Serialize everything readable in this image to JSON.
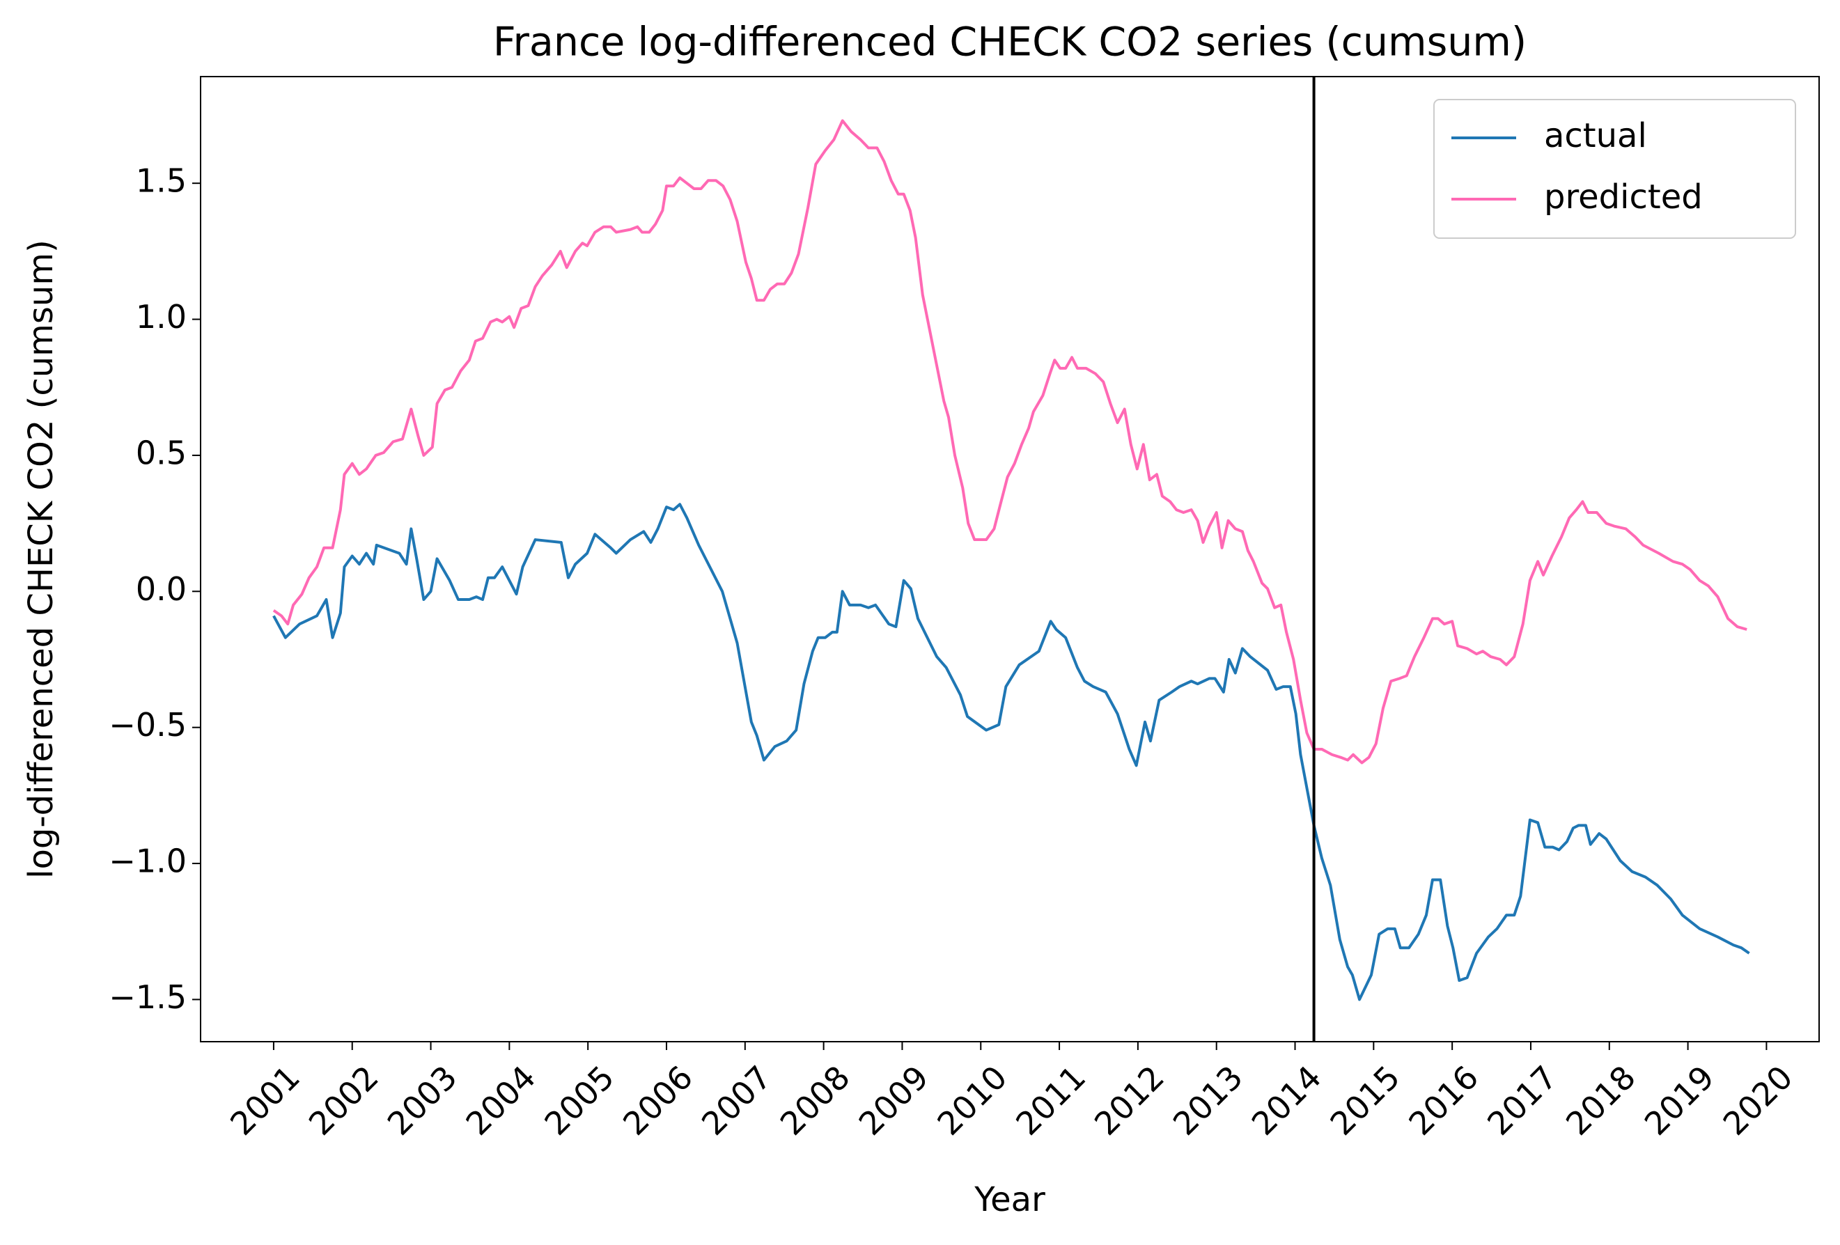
{
  "chart_data": {
    "type": "line",
    "title": "France log-differenced CHECK CO2 series (cumsum)",
    "x_label": "Year",
    "y_label": "log-differenced CHECK CO2 (cumsum)",
    "xlim": [
      2000.07,
      2020.67
    ],
    "ylim": [
      -1.655,
      1.892
    ],
    "xticks": [
      2001,
      2002,
      2003,
      2004,
      2005,
      2006,
      2007,
      2008,
      2009,
      2010,
      2011,
      2012,
      2013,
      2014,
      2015,
      2016,
      2017,
      2018,
      2019,
      2020
    ],
    "yticks": [
      {
        "value": -1.5,
        "label": "−1.5"
      },
      {
        "value": -1.0,
        "label": "−1.0"
      },
      {
        "value": -0.5,
        "label": "−0.5"
      },
      {
        "value": 0,
        "label": "0.0"
      },
      0.5,
      {
        "value": 1.0,
        "label": "1.0"
      },
      1.5
    ],
    "vline_x": 2014.24,
    "vline_color": "#000000",
    "legend": "upper right",
    "series": [
      {
        "name": "actual",
        "color": "#1f77b4",
        "x": [
          2001.0,
          2001.15,
          2001.33,
          2001.55,
          2001.67,
          2001.75,
          2001.85,
          2001.9,
          2002.0,
          2002.09,
          2002.18,
          2002.27,
          2002.31,
          2002.6,
          2002.69,
          2002.75,
          2002.82,
          2002.91,
          2003.0,
          2003.08,
          2003.24,
          2003.35,
          2003.49,
          2003.58,
          2003.66,
          2003.73,
          2003.81,
          2003.91,
          2004.09,
          2004.17,
          2004.33,
          2004.66,
          2004.75,
          2004.84,
          2004.99,
          2005.09,
          2005.29,
          2005.36,
          2005.54,
          2005.71,
          2005.8,
          2005.89,
          2006.0,
          2006.09,
          2006.17,
          2006.26,
          2006.41,
          2006.71,
          2006.81,
          2006.9,
          2007.08,
          2007.15,
          2007.24,
          2007.38,
          2007.53,
          2007.65,
          2007.75,
          2007.86,
          2007.93,
          2008.02,
          2008.11,
          2008.17,
          2008.24,
          2008.33,
          2008.47,
          2008.57,
          2008.66,
          2008.83,
          2008.92,
          2009.02,
          2009.11,
          2009.2,
          2009.44,
          2009.56,
          2009.74,
          2009.83,
          2010.07,
          2010.23,
          2010.32,
          2010.49,
          2010.74,
          2010.89,
          2010.96,
          2011.08,
          2011.23,
          2011.32,
          2011.43,
          2011.59,
          2011.74,
          2011.89,
          2011.98,
          2012.09,
          2012.16,
          2012.27,
          2012.43,
          2012.53,
          2012.68,
          2012.76,
          2012.91,
          2012.98,
          2013.09,
          2013.16,
          2013.24,
          2013.33,
          2013.43,
          2013.65,
          2013.76,
          2013.85,
          2013.94,
          2014.01,
          2014.07,
          2014.24,
          2014.34,
          2014.45,
          2014.57,
          2014.67,
          2014.73,
          2014.82,
          2014.97,
          2015.07,
          2015.18,
          2015.27,
          2015.34,
          2015.45,
          2015.57,
          2015.67,
          2015.75,
          2015.85,
          2015.94,
          2016.01,
          2016.09,
          2016.19,
          2016.31,
          2016.46,
          2016.57,
          2016.69,
          2016.79,
          2016.87,
          2016.99,
          2017.09,
          2017.18,
          2017.28,
          2017.36,
          2017.46,
          2017.54,
          2017.61,
          2017.7,
          2017.76,
          2017.87,
          2017.96,
          2018.14,
          2018.29,
          2018.46,
          2018.61,
          2018.78,
          2018.93,
          2019.15,
          2019.38,
          2019.58,
          2019.68,
          2019.78
        ],
        "values": [
          -0.09,
          -0.17,
          -0.12,
          -0.09,
          -0.03,
          -0.17,
          -0.08,
          0.09,
          0.13,
          0.1,
          0.14,
          0.1,
          0.17,
          0.14,
          0.1,
          0.23,
          0.12,
          -0.03,
          0.0,
          0.12,
          0.04,
          -0.03,
          -0.03,
          -0.02,
          -0.03,
          0.05,
          0.05,
          0.09,
          -0.01,
          0.09,
          0.19,
          0.18,
          0.05,
          0.1,
          0.14,
          0.21,
          0.16,
          0.14,
          0.19,
          0.22,
          0.18,
          0.23,
          0.31,
          0.3,
          0.32,
          0.27,
          0.17,
          0.0,
          -0.1,
          -0.19,
          -0.48,
          -0.53,
          -0.62,
          -0.57,
          -0.55,
          -0.51,
          -0.34,
          -0.22,
          -0.17,
          -0.17,
          -0.15,
          -0.15,
          0.0,
          -0.05,
          -0.05,
          -0.06,
          -0.05,
          -0.12,
          -0.13,
          0.04,
          0.01,
          -0.1,
          -0.24,
          -0.28,
          -0.38,
          -0.46,
          -0.51,
          -0.49,
          -0.35,
          -0.27,
          -0.22,
          -0.11,
          -0.14,
          -0.17,
          -0.28,
          -0.33,
          -0.35,
          -0.37,
          -0.45,
          -0.58,
          -0.64,
          -0.48,
          -0.55,
          -0.4,
          -0.37,
          -0.35,
          -0.33,
          -0.34,
          -0.32,
          -0.32,
          -0.37,
          -0.25,
          -0.3,
          -0.21,
          -0.24,
          -0.29,
          -0.36,
          -0.35,
          -0.35,
          -0.45,
          -0.6,
          -0.86,
          -0.98,
          -1.08,
          -1.28,
          -1.38,
          -1.41,
          -1.5,
          -1.41,
          -1.26,
          -1.24,
          -1.24,
          -1.31,
          -1.31,
          -1.26,
          -1.19,
          -1.06,
          -1.06,
          -1.23,
          -1.31,
          -1.43,
          -1.42,
          -1.33,
          -1.27,
          -1.24,
          -1.19,
          -1.19,
          -1.12,
          -0.84,
          -0.85,
          -0.94,
          -0.94,
          -0.95,
          -0.92,
          -0.87,
          -0.86,
          -0.86,
          -0.93,
          -0.89,
          -0.91,
          -0.99,
          -1.03,
          -1.05,
          -1.08,
          -1.13,
          -1.19,
          -1.24,
          -1.27,
          -1.3,
          -1.31,
          -1.33
        ]
      },
      {
        "name": "predicted",
        "color": "#ff69b4",
        "x": [
          2001.0,
          2001.1,
          2001.18,
          2001.25,
          2001.36,
          2001.45,
          2001.55,
          2001.64,
          2001.75,
          2001.85,
          2001.9,
          2002.0,
          2002.09,
          2002.18,
          2002.3,
          2002.4,
          2002.52,
          2002.64,
          2002.75,
          2002.84,
          2002.91,
          2003.02,
          2003.08,
          2003.18,
          2003.27,
          2003.38,
          2003.49,
          2003.57,
          2003.66,
          2003.76,
          2003.84,
          2003.91,
          2004.0,
          2004.06,
          2004.15,
          2004.24,
          2004.33,
          2004.42,
          2004.54,
          2004.65,
          2004.73,
          2004.84,
          2004.93,
          2004.99,
          2005.09,
          2005.2,
          2005.29,
          2005.36,
          2005.54,
          2005.63,
          2005.69,
          2005.78,
          2005.86,
          2005.95,
          2006.0,
          2006.09,
          2006.17,
          2006.26,
          2006.35,
          2006.44,
          2006.53,
          2006.63,
          2006.72,
          2006.81,
          2006.9,
          2007.01,
          2007.08,
          2007.15,
          2007.24,
          2007.32,
          2007.41,
          2007.5,
          2007.59,
          2007.68,
          2007.8,
          2007.9,
          2008.02,
          2008.13,
          2008.24,
          2008.35,
          2008.47,
          2008.57,
          2008.68,
          2008.77,
          2008.86,
          2008.95,
          2009.02,
          2009.1,
          2009.17,
          2009.26,
          2009.35,
          2009.44,
          2009.53,
          2009.59,
          2009.67,
          2009.77,
          2009.84,
          2009.92,
          2010.07,
          2010.17,
          2010.25,
          2010.34,
          2010.43,
          2010.52,
          2010.61,
          2010.67,
          2010.79,
          2010.88,
          2010.94,
          2011.01,
          2011.08,
          2011.16,
          2011.23,
          2011.34,
          2011.46,
          2011.56,
          2011.65,
          2011.74,
          2011.83,
          2011.91,
          2011.99,
          2012.07,
          2012.15,
          2012.24,
          2012.31,
          2012.41,
          2012.49,
          2012.58,
          2012.68,
          2012.76,
          2012.83,
          2012.91,
          2013.0,
          2013.07,
          2013.15,
          2013.24,
          2013.33,
          2013.4,
          2013.47,
          2013.58,
          2013.65,
          2013.74,
          2013.82,
          2013.89,
          2013.98,
          2014.07,
          2014.15,
          2014.24,
          2014.34,
          2014.47,
          2014.58,
          2014.67,
          2014.74,
          2014.85,
          2014.94,
          2015.03,
          2015.12,
          2015.22,
          2015.33,
          2015.42,
          2015.52,
          2015.64,
          2015.75,
          2015.82,
          2015.9,
          2016.0,
          2016.07,
          2016.19,
          2016.31,
          2016.39,
          2016.49,
          2016.61,
          2016.69,
          2016.79,
          2016.9,
          2016.99,
          2017.09,
          2017.16,
          2017.27,
          2017.39,
          2017.49,
          2017.58,
          2017.66,
          2017.73,
          2017.84,
          2017.96,
          2018.06,
          2018.21,
          2018.33,
          2018.43,
          2018.63,
          2018.81,
          2018.93,
          2019.03,
          2019.15,
          2019.26,
          2019.38,
          2019.51,
          2019.63,
          2019.75
        ],
        "values": [
          -0.07,
          -0.09,
          -0.12,
          -0.05,
          -0.01,
          0.05,
          0.09,
          0.16,
          0.16,
          0.3,
          0.43,
          0.47,
          0.43,
          0.45,
          0.5,
          0.51,
          0.55,
          0.56,
          0.67,
          0.57,
          0.5,
          0.53,
          0.69,
          0.74,
          0.75,
          0.81,
          0.85,
          0.92,
          0.93,
          0.99,
          1.0,
          0.99,
          1.01,
          0.97,
          1.04,
          1.05,
          1.12,
          1.16,
          1.2,
          1.25,
          1.19,
          1.25,
          1.28,
          1.27,
          1.32,
          1.34,
          1.34,
          1.32,
          1.33,
          1.34,
          1.32,
          1.32,
          1.35,
          1.4,
          1.49,
          1.49,
          1.52,
          1.5,
          1.48,
          1.48,
          1.51,
          1.51,
          1.49,
          1.44,
          1.36,
          1.21,
          1.15,
          1.07,
          1.07,
          1.11,
          1.13,
          1.13,
          1.17,
          1.24,
          1.41,
          1.57,
          1.62,
          1.66,
          1.73,
          1.69,
          1.66,
          1.63,
          1.63,
          1.58,
          1.51,
          1.46,
          1.46,
          1.4,
          1.3,
          1.09,
          0.96,
          0.83,
          0.7,
          0.64,
          0.5,
          0.38,
          0.25,
          0.19,
          0.19,
          0.23,
          0.32,
          0.42,
          0.47,
          0.54,
          0.6,
          0.66,
          0.72,
          0.8,
          0.85,
          0.82,
          0.82,
          0.86,
          0.82,
          0.82,
          0.8,
          0.77,
          0.69,
          0.62,
          0.67,
          0.54,
          0.45,
          0.54,
          0.41,
          0.43,
          0.35,
          0.33,
          0.3,
          0.29,
          0.3,
          0.26,
          0.18,
          0.24,
          0.29,
          0.16,
          0.26,
          0.23,
          0.22,
          0.15,
          0.11,
          0.03,
          0.01,
          -0.06,
          -0.05,
          -0.15,
          -0.25,
          -0.4,
          -0.52,
          -0.58,
          -0.58,
          -0.6,
          -0.61,
          -0.62,
          -0.6,
          -0.63,
          -0.61,
          -0.56,
          -0.43,
          -0.33,
          -0.32,
          -0.31,
          -0.24,
          -0.17,
          -0.1,
          -0.1,
          -0.12,
          -0.11,
          -0.2,
          -0.21,
          -0.23,
          -0.22,
          -0.24,
          -0.25,
          -0.27,
          -0.24,
          -0.12,
          0.04,
          0.11,
          0.06,
          0.13,
          0.2,
          0.27,
          0.3,
          0.33,
          0.29,
          0.29,
          0.25,
          0.24,
          0.23,
          0.2,
          0.17,
          0.14,
          0.11,
          0.1,
          0.08,
          0.04,
          0.02,
          -0.02,
          -0.1,
          -0.13,
          -0.14
        ]
      }
    ]
  }
}
